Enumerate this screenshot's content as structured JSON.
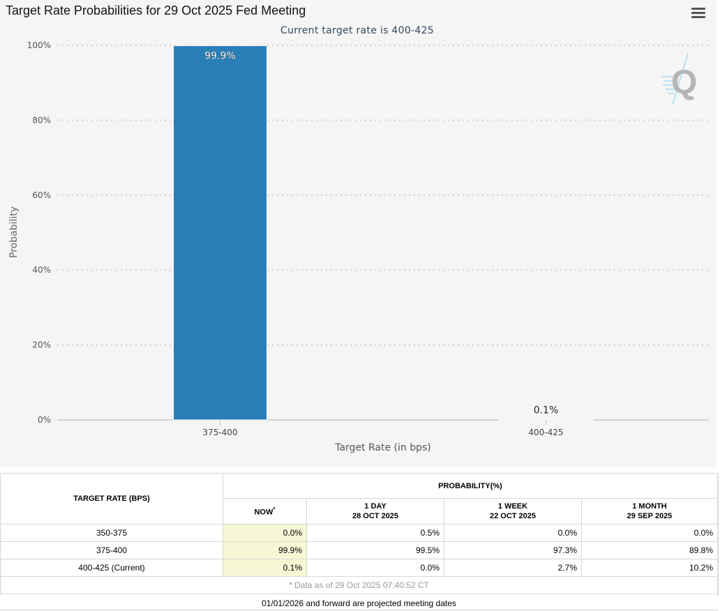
{
  "page": {
    "title": "Target Rate Probabilities for 29 Oct 2025 Fed Meeting",
    "menu_icon": "hamburger-menu-icon"
  },
  "chart_data": {
    "type": "bar",
    "title": "Current target rate is 400-425",
    "categories": [
      "375-400",
      "400-425"
    ],
    "values": [
      99.9,
      0.1
    ],
    "data_labels": [
      "99.9%",
      "0.1%"
    ],
    "xlabel": "Target Rate (in bps)",
    "ylabel": "Probability",
    "ylim": [
      0,
      100
    ],
    "yticks": [
      "0%",
      "20%",
      "40%",
      "60%",
      "80%",
      "100%"
    ],
    "ytick_values": [
      0,
      20,
      40,
      60,
      80,
      100
    ],
    "grid": true,
    "bar_color": "#2980b9"
  },
  "table": {
    "col_rate_header": "TARGET RATE (BPS)",
    "prob_header": "PROBABILITY(%)",
    "subheaders": [
      {
        "line1": "NOW",
        "line2": "",
        "mark": "*"
      },
      {
        "line1": "1 DAY",
        "line2": "28 OCT 2025",
        "mark": ""
      },
      {
        "line1": "1 WEEK",
        "line2": "22 OCT 2025",
        "mark": ""
      },
      {
        "line1": "1 MONTH",
        "line2": "29 SEP 2025",
        "mark": ""
      }
    ],
    "rows": [
      {
        "rate": "350-375",
        "now": "0.0%",
        "day": "0.5%",
        "week": "0.0%",
        "month": "0.0%"
      },
      {
        "rate": "375-400",
        "now": "99.9%",
        "day": "99.5%",
        "week": "97.3%",
        "month": "89.8%"
      },
      {
        "rate": "400-425 (Current)",
        "now": "0.1%",
        "day": "0.0%",
        "week": "2.7%",
        "month": "10.2%"
      }
    ],
    "footnote": "* Data as of 29 Oct 2025 07:40:52 CT"
  },
  "projected_note": "01/01/2026 and forward are projected meeting dates"
}
